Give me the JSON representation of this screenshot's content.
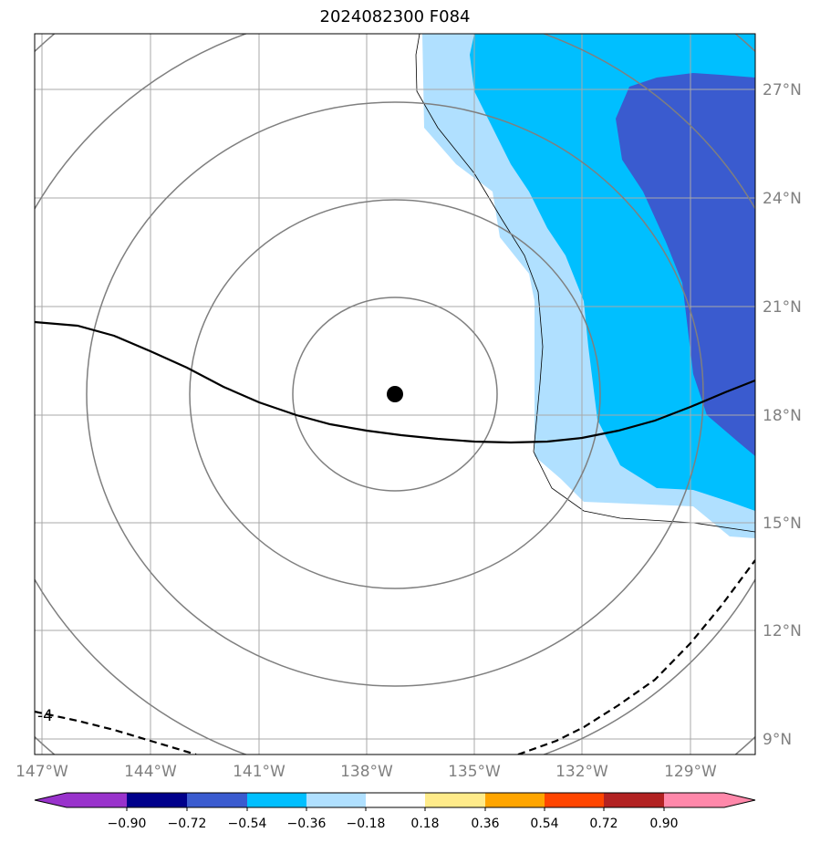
{
  "title": "2024082300 F084",
  "lon_labels": [
    "147°W",
    "144°W",
    "141°W",
    "138°W",
    "135°W",
    "132°W",
    "129°W"
  ],
  "lat_labels": [
    "27°N",
    "24°N",
    "21°N",
    "18°N",
    "15°N",
    "12°N",
    "9°N"
  ],
  "contour_label": "-4",
  "colorbar": {
    "ticks": [
      "−0.90",
      "−0.72",
      "−0.54",
      "−0.36",
      "−0.18",
      "0.18",
      "0.36",
      "0.54",
      "0.72",
      "0.90"
    ],
    "colors": [
      "#9932cc",
      "#00008b",
      "#3a5bcf",
      "#00bfff",
      "#b0e0ff",
      "#ffffff",
      "#ffeb8a",
      "#ffa500",
      "#ff4500",
      "#b22222",
      "#ff88aa"
    ]
  },
  "map": {
    "fill_colors": {
      "light": "#b0e0ff",
      "mid": "#00bfff",
      "dark": "#3a5bcf"
    },
    "storm_marker": "storm-center-dot"
  }
}
